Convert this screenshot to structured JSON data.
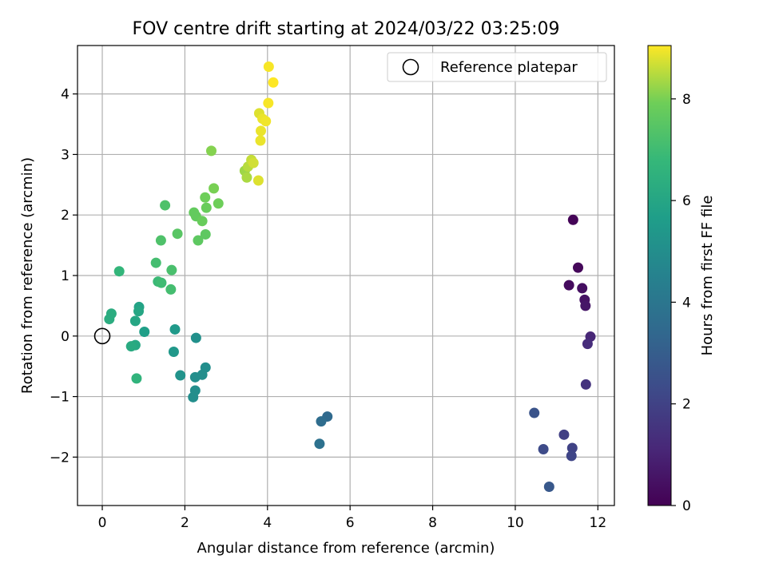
{
  "chart_data": {
    "type": "scatter",
    "title": "FOV centre drift starting at 2024/03/22 03:25:09",
    "xlabel": "Angular distance from reference (arcmin)",
    "ylabel": "Rotation from reference (arcmin)",
    "xlim": [
      -0.6,
      12.4
    ],
    "ylim": [
      -2.8,
      4.8
    ],
    "xticks": [
      0,
      2,
      4,
      6,
      8,
      10,
      12
    ],
    "yticks": [
      -2,
      -1,
      0,
      1,
      2,
      3,
      4
    ],
    "grid": true,
    "legend": {
      "placement": "top-right",
      "entries": [
        "Reference platepar"
      ]
    },
    "reference_point": {
      "x": 0,
      "y": 0
    },
    "colorbar": {
      "label": "Hours from first FF file",
      "colormap": "viridis",
      "range": [
        0,
        9.05
      ],
      "ticks": [
        0,
        2,
        4,
        6,
        8
      ]
    },
    "points": [
      {
        "x": 11.4,
        "y": 1.92,
        "c": 0.1
      },
      {
        "x": 11.52,
        "y": 1.13,
        "c": 0.2
      },
      {
        "x": 11.3,
        "y": 0.84,
        "c": 0.3
      },
      {
        "x": 11.62,
        "y": 0.79,
        "c": 0.4
      },
      {
        "x": 11.68,
        "y": 0.6,
        "c": 0.5
      },
      {
        "x": 11.7,
        "y": 0.5,
        "c": 0.6
      },
      {
        "x": 11.82,
        "y": -0.01,
        "c": 1.1
      },
      {
        "x": 11.75,
        "y": -0.13,
        "c": 1.3
      },
      {
        "x": 11.71,
        "y": -0.8,
        "c": 1.5
      },
      {
        "x": 11.18,
        "y": -1.63,
        "c": 1.9
      },
      {
        "x": 11.38,
        "y": -1.85,
        "c": 2.0
      },
      {
        "x": 11.36,
        "y": -1.98,
        "c": 2.1
      },
      {
        "x": 10.68,
        "y": -1.87,
        "c": 2.3
      },
      {
        "x": 10.46,
        "y": -1.27,
        "c": 2.6
      },
      {
        "x": 10.82,
        "y": -2.49,
        "c": 2.8
      },
      {
        "x": 5.45,
        "y": -1.33,
        "c": 3.5
      },
      {
        "x": 5.3,
        "y": -1.41,
        "c": 3.6
      },
      {
        "x": 5.26,
        "y": -1.78,
        "c": 3.8
      },
      {
        "x": 2.5,
        "y": -0.52,
        "c": 5.0
      },
      {
        "x": 2.42,
        "y": -0.64,
        "c": 5.0
      },
      {
        "x": 2.25,
        "y": -0.68,
        "c": 5.0
      },
      {
        "x": 2.25,
        "y": -0.9,
        "c": 5.0
      },
      {
        "x": 2.2,
        "y": -1.01,
        "c": 5.0
      },
      {
        "x": 2.27,
        "y": -0.03,
        "c": 5.1
      },
      {
        "x": 1.89,
        "y": -0.65,
        "c": 5.2
      },
      {
        "x": 1.73,
        "y": -0.26,
        "c": 5.4
      },
      {
        "x": 1.76,
        "y": 0.11,
        "c": 5.5
      },
      {
        "x": 1.02,
        "y": 0.07,
        "c": 5.7
      },
      {
        "x": 0.89,
        "y": 0.48,
        "c": 5.9
      },
      {
        "x": 0.88,
        "y": 0.41,
        "c": 6.0
      },
      {
        "x": 0.8,
        "y": 0.25,
        "c": 6.0
      },
      {
        "x": 0.8,
        "y": -0.15,
        "c": 6.1
      },
      {
        "x": 0.7,
        "y": -0.17,
        "c": 6.2
      },
      {
        "x": 0.22,
        "y": 0.37,
        "c": 6.3
      },
      {
        "x": 0.17,
        "y": 0.28,
        "c": 6.3
      },
      {
        "x": 0.83,
        "y": -0.7,
        "c": 6.6
      },
      {
        "x": 0.41,
        "y": 1.07,
        "c": 6.7
      },
      {
        "x": 1.35,
        "y": 0.9,
        "c": 6.9
      },
      {
        "x": 1.43,
        "y": 0.88,
        "c": 7.0
      },
      {
        "x": 1.66,
        "y": 0.77,
        "c": 7.1
      },
      {
        "x": 1.3,
        "y": 1.21,
        "c": 7.1
      },
      {
        "x": 1.68,
        "y": 1.09,
        "c": 7.2
      },
      {
        "x": 1.42,
        "y": 1.58,
        "c": 7.3
      },
      {
        "x": 1.52,
        "y": 2.16,
        "c": 7.3
      },
      {
        "x": 1.82,
        "y": 1.69,
        "c": 7.5
      },
      {
        "x": 2.32,
        "y": 1.58,
        "c": 7.6
      },
      {
        "x": 2.5,
        "y": 1.68,
        "c": 7.6
      },
      {
        "x": 2.22,
        "y": 2.04,
        "c": 7.7
      },
      {
        "x": 2.27,
        "y": 1.98,
        "c": 7.7
      },
      {
        "x": 2.42,
        "y": 1.9,
        "c": 7.8
      },
      {
        "x": 2.52,
        "y": 2.12,
        "c": 7.8
      },
      {
        "x": 2.49,
        "y": 2.29,
        "c": 7.9
      },
      {
        "x": 2.81,
        "y": 2.19,
        "c": 7.9
      },
      {
        "x": 2.7,
        "y": 2.44,
        "c": 8.0
      },
      {
        "x": 2.64,
        "y": 3.06,
        "c": 8.1
      },
      {
        "x": 3.45,
        "y": 2.73,
        "c": 8.3
      },
      {
        "x": 3.5,
        "y": 2.62,
        "c": 8.4
      },
      {
        "x": 3.53,
        "y": 2.8,
        "c": 8.5
      },
      {
        "x": 3.61,
        "y": 2.91,
        "c": 8.6
      },
      {
        "x": 3.66,
        "y": 2.86,
        "c": 8.7
      },
      {
        "x": 3.78,
        "y": 2.57,
        "c": 8.8
      },
      {
        "x": 3.8,
        "y": 3.68,
        "c": 8.8
      },
      {
        "x": 3.84,
        "y": 3.39,
        "c": 8.9
      },
      {
        "x": 3.83,
        "y": 3.23,
        "c": 8.9
      },
      {
        "x": 3.88,
        "y": 3.59,
        "c": 8.9
      },
      {
        "x": 3.96,
        "y": 3.55,
        "c": 8.95
      },
      {
        "x": 4.02,
        "y": 3.85,
        "c": 9.0
      },
      {
        "x": 4.03,
        "y": 4.45,
        "c": 9.0
      },
      {
        "x": 4.14,
        "y": 4.19,
        "c": 9.05
      }
    ]
  }
}
